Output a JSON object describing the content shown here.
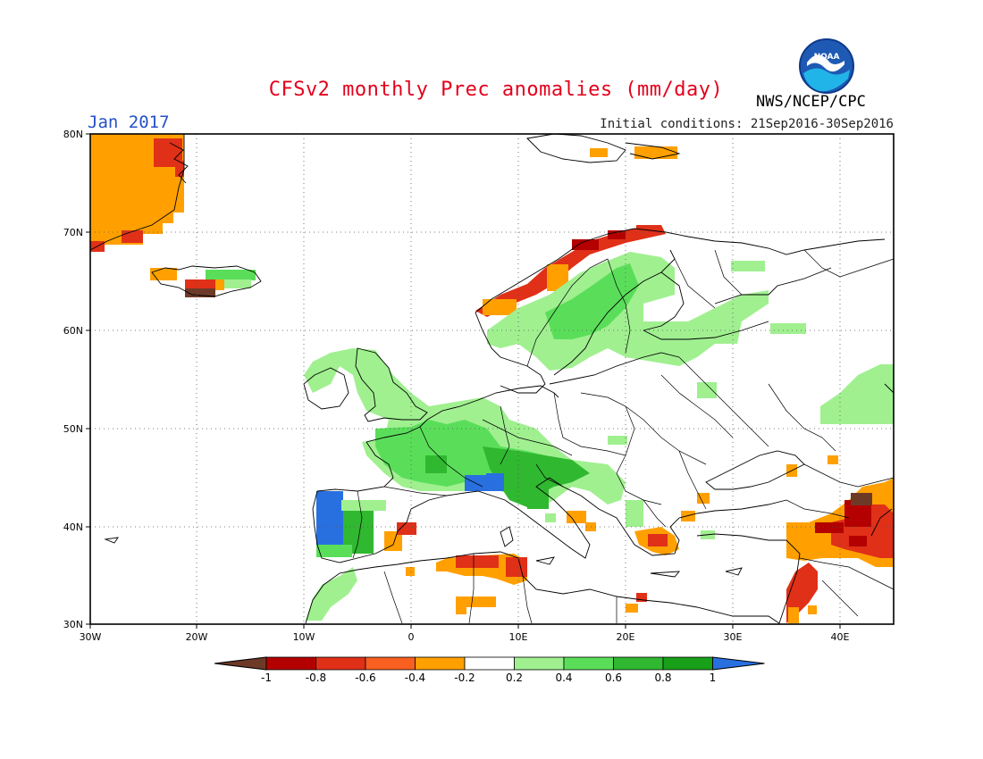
{
  "header": {
    "title": "CFSv2 monthly Prec anomalies (mm/day)",
    "period": "Jan 2017",
    "initial_conditions": "Initial conditions: 21Sep2016-30Sep2016",
    "agency": "NWS/NCEP/CPC",
    "logo_text": "NOAA"
  },
  "map": {
    "lon_range": [
      -30,
      45
    ],
    "lat_range": [
      30,
      80
    ],
    "lat_ticks": [
      "30N",
      "40N",
      "50N",
      "60N",
      "70N",
      "80N"
    ],
    "lon_ticks": [
      "30W",
      "20W",
      "10W",
      "0",
      "10E",
      "20E",
      "30E",
      "40E"
    ],
    "grid": "dotted"
  },
  "colorbar": {
    "labels": [
      "-1",
      "-0.8",
      "-0.6",
      "-0.4",
      "-0.2",
      "0.2",
      "0.4",
      "0.6",
      "0.8",
      "1"
    ],
    "colors": [
      "#6e3a28",
      "#b40000",
      "#e03018",
      "#f86020",
      "#ffa000",
      "#ffffff",
      "#a0f090",
      "#5ade5a",
      "#30b830",
      "#18a018",
      "#2870e0"
    ]
  }
}
